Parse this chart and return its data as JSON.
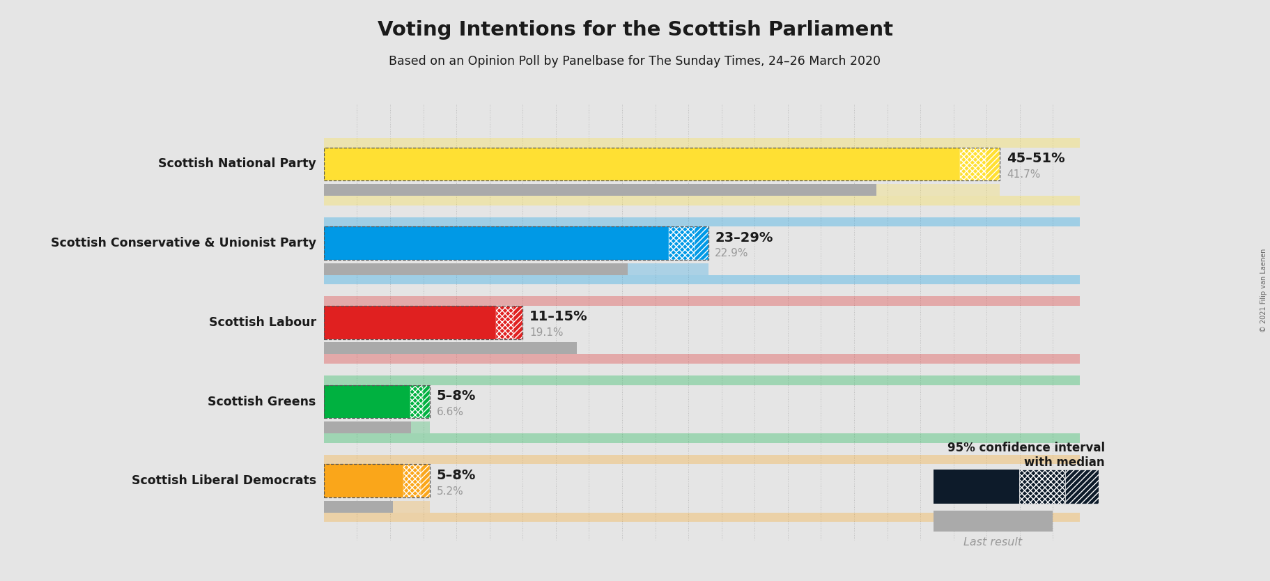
{
  "title": "Voting Intentions for the Scottish Parliament",
  "subtitle": "Based on an Opinion Poll by Panelbase for The Sunday Times, 24–26 March 2020",
  "copyright": "© 2021 Filip van Laenen",
  "background_color": "#e5e5e5",
  "parties": [
    {
      "name": "Scottish National Party",
      "ci_low": 45,
      "ci_high": 51,
      "median": 48,
      "last_result": 41.7,
      "color": "#FFE033",
      "label_ci": "45–51%",
      "label_last": "41.7%"
    },
    {
      "name": "Scottish Conservative & Unionist Party",
      "ci_low": 23,
      "ci_high": 29,
      "median": 26,
      "last_result": 22.9,
      "color": "#0099E6",
      "label_ci": "23–29%",
      "label_last": "22.9%"
    },
    {
      "name": "Scottish Labour",
      "ci_low": 11,
      "ci_high": 15,
      "median": 13,
      "last_result": 19.1,
      "color": "#E02020",
      "label_ci": "11–15%",
      "label_last": "19.1%"
    },
    {
      "name": "Scottish Greens",
      "ci_low": 5,
      "ci_high": 8,
      "median": 6.5,
      "last_result": 6.6,
      "color": "#00B140",
      "label_ci": "5–8%",
      "label_last": "6.6%"
    },
    {
      "name": "Scottish Liberal Democrats",
      "ci_low": 5,
      "ci_high": 8,
      "median": 6,
      "last_result": 5.2,
      "color": "#FAA61A",
      "label_ci": "5–8%",
      "label_last": "5.2%"
    }
  ],
  "xmax": 57,
  "bar_height": 0.42,
  "last_bar_height": 0.15,
  "bar_spacing": 1.0,
  "last_result_color": "#aaaaaa",
  "text_color_dark": "#1a1a1a",
  "text_color_gray": "#999999",
  "legend_bar_color": "#0d1b2a",
  "hatch_cross": "xxxx",
  "hatch_diag": "////",
  "dotted_color": "#888888"
}
